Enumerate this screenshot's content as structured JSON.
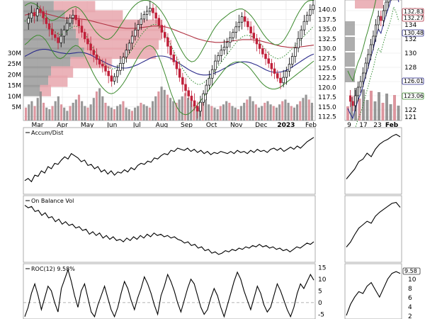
{
  "chart_data": [
    {
      "type": "candlestick",
      "panel": "main-price",
      "x_tick_labels": [
        "Mar",
        "Apr",
        "May",
        "Jun",
        "Jul",
        "Aug",
        "Sep",
        "Oct",
        "Nov",
        "Dec",
        "2023",
        "Feb"
      ],
      "y_tick_labels": [
        "140.0",
        "137.5",
        "135.0",
        "132.5",
        "130.0",
        "127.5",
        "125.0",
        "122.5",
        "120.0",
        "117.5",
        "115.0",
        "112.5"
      ],
      "volume_tick_labels": [
        "30M",
        "25M",
        "20M",
        "15M",
        "10M",
        "5M"
      ],
      "ylim": [
        111.5,
        142.5
      ],
      "price_path": [
        136.5,
        137.8,
        139.2,
        138.4,
        140.2,
        139.5,
        137.9,
        136.4,
        135.0,
        133.6,
        132.8,
        131.5,
        133.2,
        134.8,
        136.5,
        137.9,
        138.6,
        137.4,
        135.8,
        134.2,
        132.5,
        131.2,
        129.6,
        128.4,
        127.2,
        126.0,
        125.5,
        124.2,
        123.0,
        121.6,
        122.8,
        124.4,
        126.2,
        127.8,
        129.6,
        131.4,
        133.2,
        134.8,
        136.2,
        137.6,
        138.8,
        139.6,
        140.4,
        139.2,
        137.8,
        136.0,
        134.2,
        132.8,
        130.6,
        128.4,
        126.6,
        124.8,
        122.6,
        120.8,
        119.2,
        117.8,
        116.6,
        115.2,
        113.9,
        116.2,
        118.4,
        120.6,
        122.4,
        124.6,
        126.8,
        128.2,
        129.6,
        130.4,
        131.6,
        132.8,
        134.2,
        135.6,
        136.8,
        138.2,
        137.0,
        135.6,
        134.0,
        132.6,
        131.2,
        130.0,
        128.6,
        127.4,
        126.2,
        124.8,
        123.6,
        122.4,
        121.2,
        122.6,
        124.2,
        126.0,
        128.0,
        130.2,
        132.6,
        134.8,
        137.0,
        138.6,
        140.0,
        141.2
      ],
      "upper_band": [
        141,
        141.5,
        141.8,
        141.6,
        141.2,
        140.5,
        139.4,
        138.4,
        137.6,
        137.2,
        137.4,
        137.8,
        138.4,
        139.0,
        139.6,
        140.2,
        140.6,
        140.8,
        140.5,
        139.8,
        138.8,
        137.6,
        136.4,
        135.2,
        134.2,
        133.4,
        132.8,
        132.4,
        132.4,
        132.8,
        133.6,
        134.6,
        135.8,
        137.0,
        138.2,
        139.4,
        140.4,
        141.2,
        141.8,
        142.2,
        142.4,
        142.4,
        142.2,
        141.8,
        141.2,
        140.4,
        139.4,
        138.2,
        136.8,
        135.2,
        133.6,
        132.0,
        130.4,
        129.0,
        127.8,
        127.0,
        126.6,
        126.8,
        127.6,
        128.8,
        130.2,
        131.6,
        133.0,
        134.4,
        135.6,
        136.6,
        137.4,
        138.0,
        138.6,
        139.2,
        139.6,
        140.0,
        140.2,
        140.2,
        139.8,
        139.2,
        138.4,
        137.4,
        136.2,
        135.0,
        133.8,
        132.8,
        132.0,
        131.4,
        131.0,
        131.0,
        131.4,
        132.2,
        133.4,
        134.8,
        136.4,
        138.0,
        139.4,
        140.6,
        141.6,
        142.2,
        142.4,
        142.4
      ],
      "lower_band": [
        131,
        131.6,
        132.4,
        133.0,
        133.4,
        133.4,
        133.0,
        132.2,
        131.0,
        129.6,
        128.4,
        127.6,
        127.4,
        127.8,
        128.6,
        129.6,
        130.4,
        130.8,
        130.6,
        129.8,
        128.4,
        126.8,
        125.2,
        123.6,
        122.2,
        121.0,
        120.0,
        119.2,
        118.6,
        118.4,
        118.6,
        119.2,
        120.0,
        121.0,
        122.2,
        123.6,
        125.0,
        126.4,
        127.8,
        129.0,
        130.0,
        130.6,
        130.8,
        130.4,
        129.4,
        127.8,
        125.8,
        123.6,
        121.2,
        118.8,
        116.8,
        115.0,
        113.8,
        113.2,
        113.0,
        113.2,
        113.8,
        114.6,
        115.6,
        116.6,
        117.6,
        118.6,
        119.6,
        120.6,
        121.6,
        122.6,
        123.6,
        124.6,
        125.4,
        126.0,
        126.4,
        126.6,
        126.6,
        126.4,
        126.0,
        125.4,
        124.6,
        123.6,
        122.6,
        121.6,
        120.8,
        120.2,
        119.8,
        119.6,
        119.6,
        119.8,
        120.2,
        120.8,
        121.4,
        122.0,
        122.6,
        123.2,
        123.8,
        124.4,
        125.0,
        125.6,
        126.2,
        126.8
      ],
      "ma_short": [
        137,
        137.6,
        138.2,
        138.6,
        138.8,
        138.6,
        138.0,
        137.2,
        136.2,
        135.2,
        134.4,
        133.8,
        133.6,
        133.8,
        134.4,
        135.0,
        135.6,
        135.8,
        135.6,
        135.0,
        134.0,
        132.8,
        131.4,
        130.0,
        128.8,
        127.6,
        126.6,
        125.8,
        125.2,
        124.8,
        124.8,
        125.2,
        125.8,
        126.6,
        127.6,
        128.6,
        129.8,
        131.0,
        132.2,
        133.4,
        134.4,
        135.2,
        135.8,
        136.2,
        136.2,
        135.8,
        135.0,
        134.0,
        132.6,
        131.0,
        129.4,
        127.8,
        126.2,
        124.8,
        123.6,
        122.6,
        121.8,
        121.2,
        120.8,
        120.8,
        121.2,
        121.8,
        122.6,
        123.6,
        124.6,
        125.6,
        126.6,
        127.6,
        128.6,
        129.6,
        130.6,
        131.6,
        132.4,
        133.0,
        133.4,
        133.4,
        133.2,
        132.8,
        132.2,
        131.4,
        130.4,
        129.4,
        128.6,
        128.0,
        127.6,
        127.4,
        127.6,
        128.0,
        128.6,
        129.4,
        130.2,
        131.0,
        131.8,
        132.6,
        133.4,
        134.2,
        135.0,
        135.8
      ],
      "ma_long": [
        138.6,
        138.8,
        139.0,
        139.2,
        139.3,
        139.3,
        139.2,
        139.0,
        138.8,
        138.6,
        138.4,
        138.2,
        138.0,
        137.9,
        137.8,
        137.8,
        137.8,
        137.8,
        137.7,
        137.6,
        137.5,
        137.4,
        137.2,
        137.0,
        136.8,
        136.6,
        136.4,
        136.2,
        136.0,
        135.8,
        135.6,
        135.5,
        135.4,
        135.3,
        135.2,
        135.2,
        135.2,
        135.2,
        135.3,
        135.4,
        135.5,
        135.6,
        135.7,
        135.8,
        135.8,
        135.8,
        135.7,
        135.6,
        135.4,
        135.2,
        134.9,
        134.6,
        134.3,
        134.0,
        133.7,
        133.4,
        133.1,
        132.8,
        132.5,
        132.3,
        132.1,
        131.9,
        131.8,
        131.7,
        131.6,
        131.6,
        131.6,
        131.7,
        131.8,
        131.9,
        132.0,
        132.1,
        132.2,
        132.3,
        132.3,
        132.3,
        132.3,
        132.2,
        132.1,
        132.0,
        131.8,
        131.6,
        131.4,
        131.2,
        131.0,
        130.8,
        130.6,
        130.5,
        130.4,
        130.3,
        130.3,
        130.3,
        130.4,
        130.5,
        130.6,
        130.7,
        130.8,
        130.9
      ],
      "ma_mid": [
        128,
        128.4,
        128.8,
        129.2,
        129.5,
        129.7,
        129.8,
        129.8,
        129.7,
        129.5,
        129.3,
        129.1,
        128.9,
        128.8,
        128.7,
        128.7,
        128.8,
        128.9,
        129.0,
        129.0,
        128.9,
        128.7,
        128.4,
        128.0,
        127.6,
        127.2,
        126.8,
        126.4,
        126.0,
        125.7,
        125.4,
        125.2,
        125.1,
        125.0,
        125.0,
        125.1,
        125.3,
        125.6,
        125.9,
        126.3,
        126.7,
        127.1,
        127.5,
        127.8,
        128.0,
        128.1,
        128.1,
        128.0,
        127.8,
        127.5,
        127.1,
        126.6,
        126.1,
        125.6,
        125.1,
        124.6,
        124.2,
        123.8,
        123.5,
        123.3,
        123.2,
        123.2,
        123.3,
        123.5,
        123.8,
        124.1,
        124.5,
        124.9,
        125.3,
        125.7,
        126.0,
        126.3,
        126.5,
        126.6,
        126.6,
        126.5,
        126.3,
        126.0,
        125.7,
        125.3,
        124.9,
        124.5,
        124.2,
        124.0,
        123.9,
        123.9,
        124.0,
        124.2,
        124.5,
        124.9,
        125.4,
        125.9,
        126.4,
        126.9,
        127.4,
        127.9,
        128.3,
        128.6
      ],
      "volume_profile": [
        {
          "y": 140.8,
          "up": 22,
          "down": 30
        },
        {
          "y": 138.4,
          "up": 30,
          "down": 42
        },
        {
          "y": 136.0,
          "up": 36,
          "down": 64
        },
        {
          "y": 133.6,
          "up": 38,
          "down": 62
        },
        {
          "y": 131.2,
          "up": 40,
          "down": 58
        },
        {
          "y": 128.8,
          "up": 44,
          "down": 52
        },
        {
          "y": 126.4,
          "up": 34,
          "down": 30
        },
        {
          "y": 124.0,
          "up": 20,
          "down": 16
        },
        {
          "y": 121.6,
          "up": 18,
          "down": 14
        },
        {
          "y": 119.2,
          "up": 12,
          "down": 8
        }
      ],
      "volume_bars": [
        8,
        10,
        12,
        9,
        14,
        18,
        11,
        8,
        7,
        9,
        12,
        15,
        10,
        8,
        6,
        9,
        11,
        13,
        16,
        12,
        9,
        8,
        10,
        14,
        18,
        20,
        15,
        11,
        9,
        8,
        7,
        9,
        10,
        12,
        8,
        7,
        6,
        8,
        9,
        11,
        10,
        9,
        8,
        12,
        15,
        18,
        21,
        19,
        16,
        14,
        12,
        11,
        13,
        15,
        17,
        14,
        12,
        10,
        9,
        8,
        11,
        13,
        10,
        9,
        8,
        7,
        9,
        10,
        12,
        11,
        9,
        8,
        7,
        9,
        11,
        13,
        15,
        12,
        10,
        8,
        9,
        11,
        12,
        10,
        9,
        8,
        10,
        12,
        13,
        11,
        9,
        8,
        10,
        12,
        14,
        16,
        13,
        11
      ]
    },
    {
      "type": "line",
      "panel": "accum-dist",
      "legend_label": "Accum/Dist",
      "y": [
        0.2,
        0.24,
        0.18,
        0.3,
        0.28,
        0.38,
        0.34,
        0.46,
        0.42,
        0.52,
        0.5,
        0.58,
        0.64,
        0.6,
        0.7,
        0.66,
        0.62,
        0.55,
        0.58,
        0.48,
        0.5,
        0.42,
        0.46,
        0.36,
        0.4,
        0.32,
        0.38,
        0.3,
        0.36,
        0.34,
        0.4,
        0.36,
        0.44,
        0.4,
        0.48,
        0.52,
        0.5,
        0.56,
        0.54,
        0.62,
        0.6,
        0.66,
        0.7,
        0.68,
        0.76,
        0.74,
        0.8,
        0.78,
        0.76,
        0.8,
        0.74,
        0.78,
        0.72,
        0.76,
        0.7,
        0.74,
        0.68,
        0.72,
        0.7,
        0.74,
        0.72,
        0.7,
        0.74,
        0.7,
        0.76,
        0.72,
        0.74,
        0.7,
        0.76,
        0.72,
        0.78,
        0.74,
        0.76,
        0.72,
        0.78,
        0.8,
        0.76,
        0.8,
        0.74,
        0.78,
        0.82,
        0.78,
        0.84,
        0.8,
        0.86,
        0.92,
        0.96,
        1.0
      ],
      "ylim": [
        0,
        1.05
      ]
    },
    {
      "type": "line",
      "panel": "on-balance-vol",
      "legend_label": "On Balance Vol",
      "y": [
        0.96,
        0.92,
        0.94,
        0.86,
        0.88,
        0.8,
        0.84,
        0.76,
        0.78,
        0.7,
        0.74,
        0.66,
        0.7,
        0.64,
        0.66,
        0.6,
        0.62,
        0.56,
        0.58,
        0.5,
        0.54,
        0.48,
        0.52,
        0.44,
        0.48,
        0.42,
        0.46,
        0.4,
        0.42,
        0.38,
        0.44,
        0.4,
        0.46,
        0.42,
        0.48,
        0.44,
        0.5,
        0.46,
        0.52,
        0.48,
        0.5,
        0.46,
        0.48,
        0.44,
        0.46,
        0.42,
        0.4,
        0.36,
        0.38,
        0.32,
        0.34,
        0.28,
        0.3,
        0.24,
        0.26,
        0.2,
        0.22,
        0.18,
        0.2,
        0.24,
        0.22,
        0.26,
        0.24,
        0.28,
        0.26,
        0.3,
        0.28,
        0.32,
        0.3,
        0.34,
        0.3,
        0.32,
        0.28,
        0.3,
        0.26,
        0.28,
        0.24,
        0.26,
        0.22,
        0.26,
        0.3,
        0.28,
        0.32,
        0.36,
        0.34,
        0.38
      ],
      "ylim": [
        0.1,
        1.0
      ]
    },
    {
      "type": "line",
      "panel": "roc",
      "legend_label": "ROC(12) 9.58%",
      "y_tick_labels": [
        "15",
        "10",
        "5",
        "0",
        "-5"
      ],
      "ylim": [
        -7,
        16
      ],
      "zero_line": 0,
      "y": [
        -6,
        -2,
        4,
        8,
        3,
        -3,
        2,
        7,
        5,
        0,
        -4,
        6,
        10,
        14,
        9,
        3,
        -2,
        5,
        8,
        2,
        -4,
        -6,
        -1,
        3,
        7,
        2,
        -3,
        -6,
        -2,
        4,
        9,
        6,
        1,
        -3,
        2,
        6,
        11,
        8,
        4,
        -1,
        -5,
        3,
        7,
        12,
        9,
        5,
        0,
        -4,
        1,
        6,
        10,
        8,
        3,
        -2,
        -5,
        -3,
        2,
        6,
        3,
        -2,
        -6,
        -1,
        4,
        9,
        13,
        10,
        5,
        1,
        -3,
        2,
        7,
        4,
        -1,
        -4,
        -2,
        3,
        8,
        5,
        1,
        -3,
        -6,
        -2,
        4,
        8,
        6,
        9,
        12,
        9.58
      ]
    }
  ],
  "side_panel": {
    "x_tick_labels": [
      "9",
      "17",
      "23",
      "Feb"
    ],
    "y_tick_labels": [
      "136",
      "134",
      "132",
      "130",
      "128",
      "126",
      "124",
      "122",
      "121"
    ],
    "price_badges": [
      "132.83",
      "132.27",
      "130.48",
      "126.01",
      "123.06"
    ],
    "roc_tick_labels": [
      "10",
      "8",
      "6",
      "4",
      "2"
    ],
    "roc_badge": "9.58",
    "price_path": [
      124.0,
      123.2,
      122.6,
      124.0,
      125.2,
      126.0,
      127.2,
      128.6,
      129.8,
      131.2,
      132.4,
      134.0,
      135.2,
      134.6,
      136.0,
      137.2,
      138.2,
      139.4,
      141.0,
      140.2,
      139.0
    ],
    "ad_path": [
      0.1,
      0.2,
      0.3,
      0.45,
      0.5,
      0.62,
      0.55,
      0.7,
      0.8,
      0.86,
      0.9,
      0.96,
      1.0,
      0.95
    ],
    "obv_path": [
      0.1,
      0.2,
      0.35,
      0.48,
      0.55,
      0.62,
      0.58,
      0.72,
      0.8,
      0.86,
      0.92,
      0.98,
      1.0,
      0.9
    ],
    "roc_path": [
      -0.2,
      0.1,
      0.3,
      0.45,
      0.4,
      0.6,
      0.7,
      0.5,
      0.3,
      0.55,
      0.8,
      0.95,
      1.0,
      0.95
    ]
  },
  "colors": {
    "grid": "#e3e3e3",
    "up_candle": "#000000",
    "down_candle": "#c0203a",
    "upper_band": "#3c8a2e",
    "ma_short_dotted": "#2f8b2f",
    "ma_long": "#b03040",
    "ma_mid": "#2a2a8a",
    "vol_profile_up": "#9a9a9a",
    "vol_profile_down": "#e8a6ad",
    "vol_up": "#8c8c8c",
    "vol_down": "#d98b95"
  }
}
